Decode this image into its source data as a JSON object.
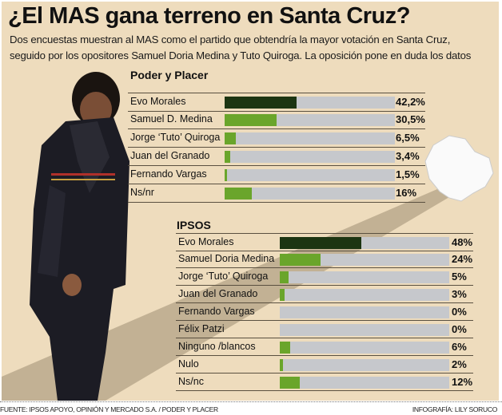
{
  "header": {
    "title": "¿El MAS gana terreno en Santa Cruz?",
    "subtitle_line1": "Dos encuestas muestran al MAS como el partido que obtendría la mayor votación en Santa Cruz,",
    "subtitle_line2": "seguido por los opositores Samuel Doria Medina y Tuto Quiroga. La oposición pone en duda los datos"
  },
  "colors": {
    "leader": "#1c3512",
    "other": "#6aa52b",
    "track": "#c6c8cc",
    "background": "#eedcbd"
  },
  "chart_data": [
    {
      "type": "bar",
      "title": "Poder y Placer",
      "xlim": [
        0,
        100
      ],
      "categories": [
        "Evo Morales",
        "Samuel D. Medina",
        "Jorge ‘Tuto’ Quiroga",
        "Juan del Granado",
        "Fernando Vargas",
        "Ns/nr"
      ],
      "values": [
        42.2,
        30.5,
        6.5,
        3.4,
        1.5,
        16
      ],
      "labels": [
        "42,2%",
        "30,5%",
        "6,5%",
        "3,4%",
        "1,5%",
        "16%"
      ]
    },
    {
      "type": "bar",
      "title": "IPSOS",
      "xlim": [
        0,
        100
      ],
      "categories": [
        "Evo Morales",
        "Samuel Doria Medina",
        "Jorge ‘Tuto’ Quiroga",
        "Juan del Granado",
        "Fernando Vargas",
        "Félix Patzi",
        "Ninguno /blancos",
        "Nulo",
        "Ns/nc"
      ],
      "values": [
        48,
        24,
        5,
        3,
        0,
        0,
        6,
        2,
        12
      ],
      "labels": [
        "48%",
        "24%",
        "5%",
        "3%",
        "0%",
        "0%",
        "6%",
        "2%",
        "12%"
      ]
    }
  ],
  "footer": {
    "source": "FUENTE: IPSOS APOYO, OPINIÓN Y MERCADO S.A.  / PODER Y PLACER",
    "credit": "INFOGRAFÍA: LILY SORUCO"
  }
}
